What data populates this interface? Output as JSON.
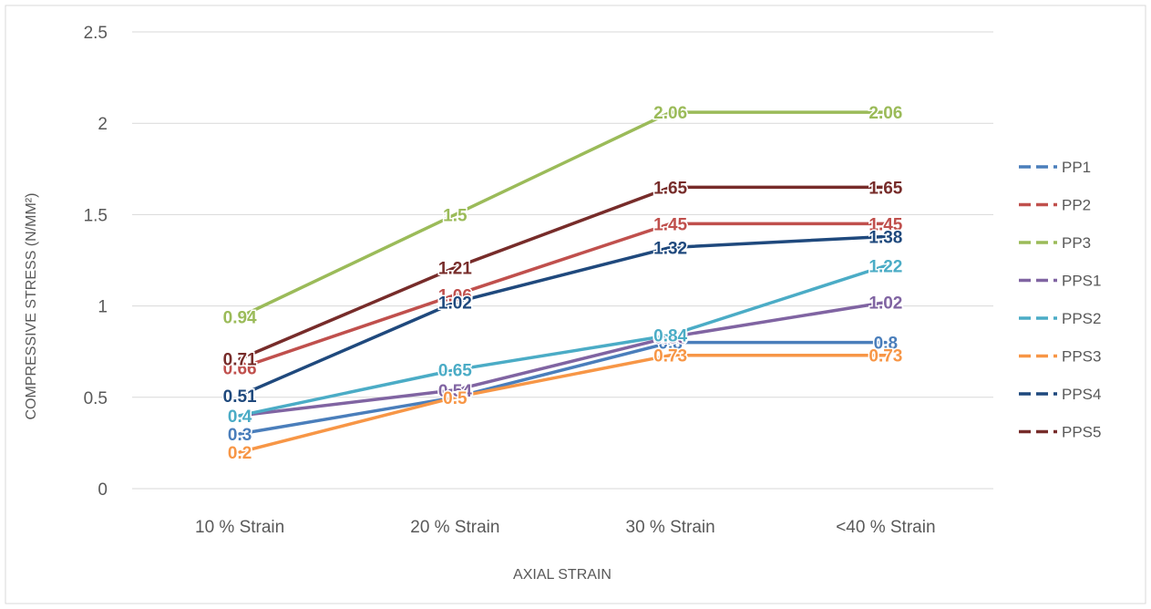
{
  "chart_data": {
    "type": "line",
    "title": "",
    "xlabel": "AXIAL STRAIN",
    "ylabel": "COMPRESSIVE STRESS (N/MM²)",
    "categories": [
      "10 % Strain",
      "20 % Strain",
      "30 % Strain",
      "<40 % Strain"
    ],
    "ylim": [
      0,
      2.5
    ],
    "yticks": [
      "0",
      "0.5",
      "1",
      "1.5",
      "2",
      "2.5"
    ],
    "grid": true,
    "legend_position": "right",
    "series": [
      {
        "name": "PP1",
        "values": [
          0.3,
          0.5,
          0.8,
          0.8
        ],
        "labels": [
          "0.3",
          "0.5",
          "0.8",
          "0.8"
        ],
        "color": "#4a7ebb"
      },
      {
        "name": "PP2",
        "values": [
          0.66,
          1.06,
          1.45,
          1.45
        ],
        "labels": [
          "0.66",
          "1.06",
          "1.45",
          "1.45"
        ],
        "color": "#c0504d"
      },
      {
        "name": "PP3",
        "values": [
          0.94,
          1.5,
          2.06,
          2.06
        ],
        "labels": [
          "0.94",
          "1.5",
          "2.06",
          "2.06"
        ],
        "color": "#9bbb59"
      },
      {
        "name": "PPS1",
        "values": [
          0.4,
          0.54,
          0.83,
          1.02
        ],
        "labels": [
          "0.4",
          "0.54",
          "0.83",
          "1.02"
        ],
        "color": "#8064a2"
      },
      {
        "name": "PPS2",
        "values": [
          0.4,
          0.65,
          0.84,
          1.22
        ],
        "labels": [
          "0.4",
          "0.65",
          "0.84",
          "1.22"
        ],
        "color": "#4bacc6"
      },
      {
        "name": "PPS3",
        "values": [
          0.2,
          0.5,
          0.73,
          0.73
        ],
        "labels": [
          "0.2",
          "0.5",
          "0.73",
          "0.73"
        ],
        "color": "#f79646"
      },
      {
        "name": "PPS4",
        "values": [
          0.51,
          1.02,
          1.32,
          1.38
        ],
        "labels": [
          "0.51",
          "1.02",
          "1.32",
          "1.38"
        ],
        "color": "#1f497d"
      },
      {
        "name": "PPS5",
        "values": [
          0.71,
          1.21,
          1.65,
          1.65
        ],
        "labels": [
          "0.71",
          "1.21",
          "1.65",
          "1.65"
        ],
        "color": "#772c2a"
      }
    ]
  }
}
